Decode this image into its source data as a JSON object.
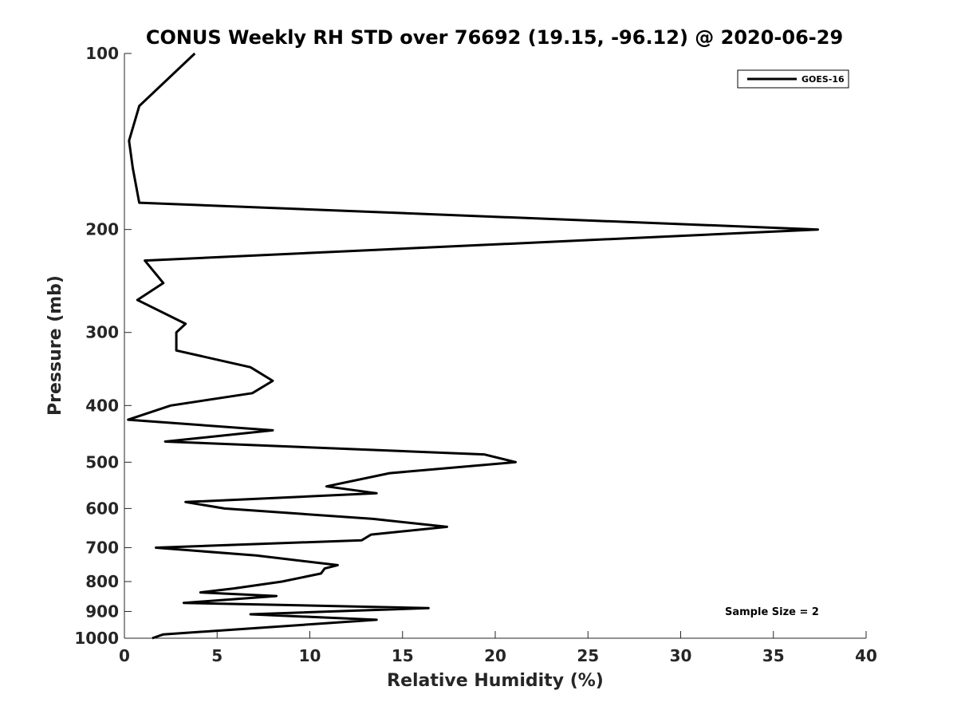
{
  "chart_data": {
    "type": "line",
    "title": "CONUS Weekly RH STD over 76692 (19.15, -96.12) @ 2020-06-29",
    "xlabel": "Relative Humidity (%)",
    "ylabel": "Pressure (mb)",
    "xlim": [
      0,
      40
    ],
    "ylim": [
      100,
      1000
    ],
    "y_scale": "log",
    "y_reversed": true,
    "grid": false,
    "x_ticks": [
      0,
      5,
      10,
      15,
      20,
      25,
      30,
      35,
      40
    ],
    "x_tick_labels": [
      "0",
      "5",
      "10",
      "15",
      "20",
      "25",
      "30",
      "35",
      "40"
    ],
    "y_ticks": [
      100,
      200,
      300,
      400,
      500,
      600,
      700,
      800,
      900,
      1000
    ],
    "y_tick_labels": [
      "100",
      "200",
      "300",
      "400",
      "500",
      "600",
      "700",
      "800",
      "900",
      "1000"
    ],
    "legend": {
      "position": "top-right",
      "entries": [
        "GOES-16"
      ]
    },
    "annotation": "Sample Size = 2",
    "series": [
      {
        "name": "GOES-16",
        "color": "#000000",
        "x": [
          3.8,
          0.8,
          0.25,
          0.45,
          0.8,
          37.4,
          1.1,
          2.1,
          0.7,
          3.3,
          2.8,
          2.8,
          6.8,
          8.0,
          6.9,
          2.5,
          0.2,
          8.0,
          2.2,
          19.4,
          21.1,
          14.3,
          10.9,
          13.6,
          3.3,
          5.4,
          13.4,
          17.4,
          13.3,
          12.8,
          1.7,
          7.1,
          11.5,
          10.8,
          10.6,
          8.5,
          5.9,
          4.1,
          8.2,
          3.2,
          16.4,
          6.8,
          13.6,
          2.1,
          1.5
        ],
        "y": [
          100,
          123,
          141,
          157,
          180,
          200,
          226,
          247,
          264,
          290,
          300,
          322,
          344,
          363,
          381,
          400,
          423,
          441,
          461,
          485,
          500,
          522,
          550,
          565,
          585,
          600,
          625,
          645,
          665,
          680,
          700,
          722,
          750,
          760,
          775,
          800,
          822,
          835,
          847,
          870,
          888,
          910,
          930,
          985,
          1000
        ]
      }
    ]
  }
}
